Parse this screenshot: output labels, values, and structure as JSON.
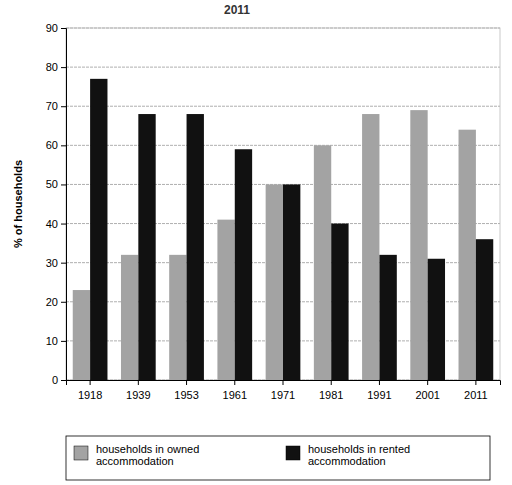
{
  "chart_data": {
    "type": "bar",
    "title": "2011",
    "y_label": "% of households",
    "categories": [
      "1918",
      "1939",
      "1953",
      "1961",
      "1971",
      "1981",
      "1991",
      "2001",
      "2011"
    ],
    "series": [
      {
        "name": "households in owned accommodation",
        "color": "#a3a3a3",
        "values": [
          23,
          32,
          32,
          41,
          50,
          60,
          68,
          69,
          64
        ]
      },
      {
        "name": "households in rented accommodation",
        "color": "#111111",
        "values": [
          77,
          68,
          68,
          59,
          50,
          40,
          32,
          31,
          36
        ]
      }
    ],
    "ylim": [
      0,
      90
    ],
    "yticks": [
      0,
      10,
      20,
      30,
      40,
      50,
      60,
      70,
      80,
      90
    ],
    "grid": true,
    "legend": "bottom"
  }
}
